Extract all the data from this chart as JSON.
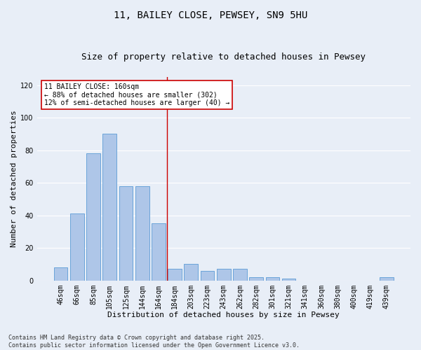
{
  "title": "11, BAILEY CLOSE, PEWSEY, SN9 5HU",
  "subtitle": "Size of property relative to detached houses in Pewsey",
  "xlabel": "Distribution of detached houses by size in Pewsey",
  "ylabel": "Number of detached properties",
  "categories": [
    "46sqm",
    "66sqm",
    "85sqm",
    "105sqm",
    "125sqm",
    "144sqm",
    "164sqm",
    "184sqm",
    "203sqm",
    "223sqm",
    "243sqm",
    "262sqm",
    "282sqm",
    "301sqm",
    "321sqm",
    "341sqm",
    "360sqm",
    "380sqm",
    "400sqm",
    "419sqm",
    "439sqm"
  ],
  "values": [
    8,
    41,
    78,
    90,
    58,
    58,
    35,
    7,
    10,
    6,
    7,
    7,
    2,
    2,
    1,
    0,
    0,
    0,
    0,
    0,
    2
  ],
  "bar_color": "#aec6e8",
  "bar_edgecolor": "#5b9bd5",
  "highlight_line_index": 6,
  "highlight_line_color": "#cc0000",
  "annotation_text": "11 BAILEY CLOSE: 160sqm\n← 88% of detached houses are smaller (302)\n12% of semi-detached houses are larger (40) →",
  "annotation_box_color": "#ffffff",
  "annotation_box_edgecolor": "#cc0000",
  "ylim": [
    0,
    125
  ],
  "yticks": [
    0,
    20,
    40,
    60,
    80,
    100,
    120
  ],
  "background_color": "#e8eef7",
  "grid_color": "#ffffff",
  "footer_line1": "Contains HM Land Registry data © Crown copyright and database right 2025.",
  "footer_line2": "Contains public sector information licensed under the Open Government Licence v3.0.",
  "title_fontsize": 10,
  "subtitle_fontsize": 9,
  "xlabel_fontsize": 8,
  "ylabel_fontsize": 8,
  "tick_fontsize": 7,
  "annotation_fontsize": 7,
  "footer_fontsize": 6
}
